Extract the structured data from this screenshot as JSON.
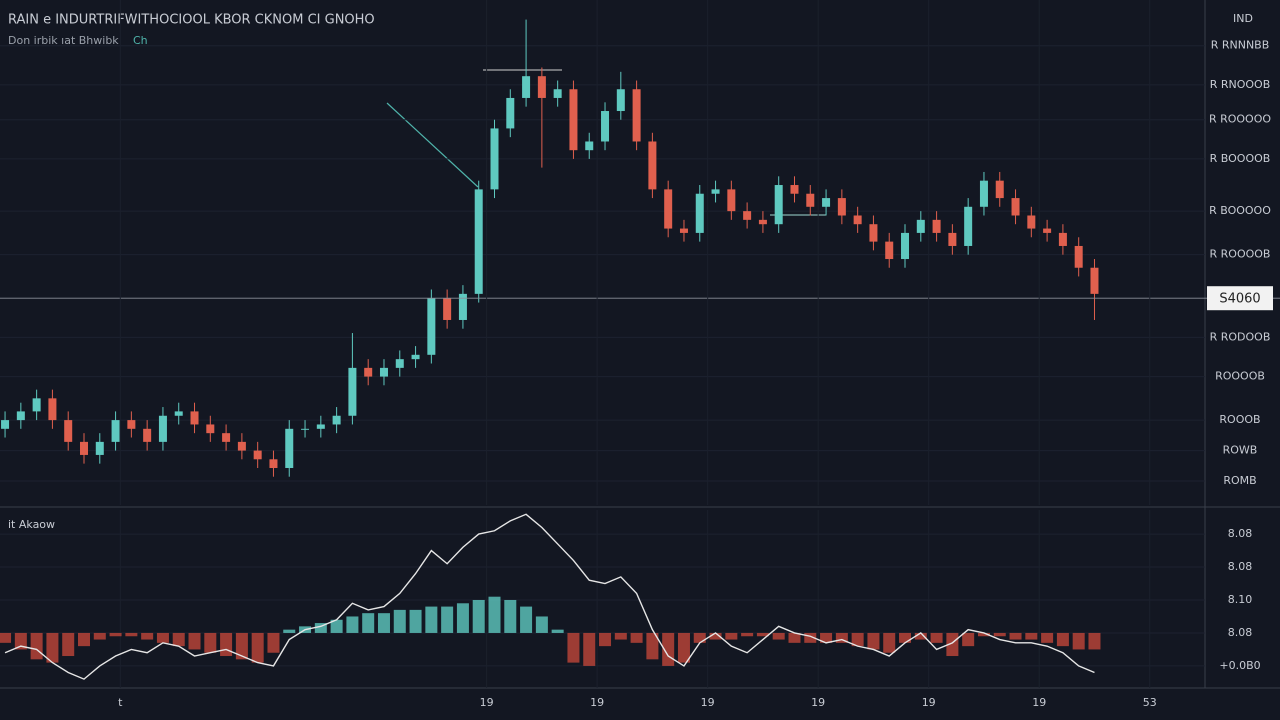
{
  "chart_data": [
    {
      "type": "candlestick",
      "title": "RAIN e INDURTRIFWITHOCIOOL KBOR CKNOM CI GNOHO",
      "subtitle": "Don irbik ıat Bhwibk",
      "subtitle_note": "Ch",
      "axis_label": "IND",
      "up_color": "#5fc9c0",
      "down_color": "#e0604e",
      "grid": true,
      "xlim": [
        -0.32,
        76
      ],
      "ylim": [
        0.45,
        12.05
      ],
      "yticks": [
        {
          "value": 11,
          "label": "R RNNNBB"
        },
        {
          "value": 10.1,
          "label": "R RNOOOB"
        },
        {
          "value": 9.3,
          "label": "R ROOOOO"
        },
        {
          "value": 8.4,
          "label": "R BOOOOB"
        },
        {
          "value": 7.2,
          "label": "R BOOOOO"
        },
        {
          "value": 6.2,
          "label": "R ROOOOB"
        },
        {
          "value": 4.3,
          "label": "R RODOOB"
        },
        {
          "value": 3.4,
          "label": "ROOOOB"
        },
        {
          "value": 2.4,
          "label": "ROOOB"
        },
        {
          "value": 1.7,
          "label": "ROWB"
        },
        {
          "value": 1,
          "label": "ROMB"
        }
      ],
      "price_line": {
        "value": 5.2,
        "label": "S4060"
      },
      "open": [
        2.2,
        2.4,
        2.6,
        2.9,
        2.4,
        1.9,
        1.6,
        1.9,
        2.4,
        2.2,
        1.9,
        2.5,
        2.6,
        2.3,
        2.1,
        1.9,
        1.7,
        1.5,
        1.3,
        2.2,
        2.2,
        2.3,
        2.5,
        3.6,
        3.4,
        3.6,
        3.8,
        3.9,
        5.2,
        4.7,
        5.3,
        7.7,
        9.1,
        9.8,
        10.3,
        9.8,
        10.0,
        8.6,
        8.8,
        9.5,
        10.0,
        8.8,
        7.7,
        6.8,
        6.7,
        7.6,
        7.7,
        7.2,
        7.0,
        6.9,
        7.8,
        7.6,
        7.3,
        7.5,
        7.1,
        6.9,
        6.5,
        6.1,
        6.7,
        7.0,
        6.7,
        6.4,
        7.3,
        7.9,
        7.5,
        7.1,
        6.8,
        6.7,
        6.4,
        5.9
      ],
      "high": [
        2.6,
        2.8,
        3.1,
        3.1,
        2.6,
        2.1,
        2.1,
        2.6,
        2.6,
        2.4,
        2.7,
        2.8,
        2.8,
        2.5,
        2.3,
        2.1,
        1.9,
        1.7,
        2.4,
        2.4,
        2.5,
        2.7,
        4.4,
        3.8,
        3.8,
        4.0,
        4.1,
        5.4,
        5.4,
        5.5,
        7.9,
        9.3,
        10.0,
        11.6,
        10.5,
        10.2,
        10.2,
        9.0,
        9.7,
        10.4,
        10.2,
        9.0,
        7.9,
        7.0,
        7.8,
        7.9,
        7.9,
        7.4,
        7.2,
        8.0,
        8.0,
        7.8,
        7.7,
        7.7,
        7.3,
        7.1,
        6.7,
        6.9,
        7.2,
        7.2,
        6.9,
        7.5,
        8.1,
        8.1,
        7.7,
        7.3,
        7.0,
        6.9,
        6.6,
        6.1
      ],
      "low": [
        2.0,
        2.2,
        2.4,
        2.2,
        1.7,
        1.4,
        1.4,
        1.7,
        2.0,
        1.7,
        1.7,
        2.3,
        2.1,
        1.9,
        1.7,
        1.5,
        1.3,
        1.1,
        1.1,
        2.0,
        2.0,
        2.1,
        2.3,
        3.2,
        3.2,
        3.4,
        3.6,
        3.7,
        4.5,
        4.5,
        5.1,
        7.5,
        8.9,
        9.6,
        8.2,
        9.6,
        8.4,
        8.4,
        8.6,
        9.3,
        8.6,
        7.5,
        6.6,
        6.5,
        6.5,
        7.4,
        7.0,
        6.8,
        6.7,
        6.7,
        7.4,
        7.1,
        7.1,
        6.9,
        6.7,
        6.3,
        5.9,
        5.9,
        6.5,
        6.5,
        6.2,
        6.2,
        7.1,
        7.3,
        6.9,
        6.6,
        6.5,
        6.2,
        5.7,
        4.7
      ],
      "close": [
        2.4,
        2.6,
        2.9,
        2.4,
        1.9,
        1.6,
        1.9,
        2.4,
        2.2,
        1.9,
        2.5,
        2.6,
        2.3,
        2.1,
        1.9,
        1.7,
        1.5,
        1.3,
        2.2,
        2.2,
        2.3,
        2.5,
        3.6,
        3.4,
        3.6,
        3.8,
        3.9,
        5.2,
        4.7,
        5.3,
        7.7,
        9.1,
        9.8,
        10.3,
        9.8,
        10.0,
        8.6,
        8.8,
        9.5,
        10.0,
        8.8,
        7.7,
        6.8,
        6.7,
        7.6,
        7.7,
        7.2,
        7.0,
        6.9,
        7.8,
        7.6,
        7.3,
        7.5,
        7.1,
        6.9,
        6.5,
        6.1,
        6.7,
        7.0,
        6.7,
        6.4,
        7.3,
        7.9,
        7.5,
        7.1,
        6.8,
        6.7,
        6.4,
        5.9,
        5.3
      ]
    },
    {
      "type": "bar",
      "title": "it Akaow",
      "up_color": "#5fc9c0",
      "down_color": "#c0463a",
      "grid": true,
      "xlim": [
        -0.32,
        76
      ],
      "ylim": [
        -1.67,
        3.73
      ],
      "yticks": [
        {
          "value": 3,
          "label": "8.08"
        },
        {
          "value": 2,
          "label": "8.08"
        },
        {
          "value": 1,
          "label": "8.10"
        },
        {
          "value": 0,
          "label": "8.08"
        },
        {
          "value": -1,
          "label": "+0.0B0"
        }
      ],
      "xticks": [
        {
          "value": 7.3,
          "label": "t"
        },
        {
          "value": 30.5,
          "label": "19"
        },
        {
          "value": 37.5,
          "label": "19"
        },
        {
          "value": 44.5,
          "label": "19"
        },
        {
          "value": 51.5,
          "label": "19"
        },
        {
          "value": 58.5,
          "label": "19"
        },
        {
          "value": 65.5,
          "label": "19"
        },
        {
          "value": 72.5,
          "label": "53"
        }
      ],
      "values": [
        -0.3,
        -0.5,
        -0.8,
        -0.9,
        -0.7,
        -0.4,
        -0.2,
        -0.1,
        -0.1,
        -0.2,
        -0.3,
        -0.4,
        -0.5,
        -0.6,
        -0.7,
        -0.8,
        -0.9,
        -0.6,
        0.1,
        0.2,
        0.3,
        0.4,
        0.5,
        0.6,
        0.6,
        0.7,
        0.7,
        0.8,
        0.8,
        0.9,
        1.0,
        1.1,
        1.0,
        0.8,
        0.5,
        0.1,
        -0.9,
        -1.0,
        -0.4,
        -0.2,
        -0.3,
        -0.8,
        -1.0,
        -0.9,
        -0.3,
        -0.2,
        -0.2,
        -0.1,
        -0.1,
        -0.2,
        -0.3,
        -0.3,
        -0.3,
        -0.3,
        -0.4,
        -0.5,
        -0.6,
        -0.3,
        -0.2,
        -0.3,
        -0.7,
        -0.4,
        -0.1,
        -0.1,
        -0.2,
        -0.2,
        -0.3,
        -0.4,
        -0.5,
        -0.5
      ],
      "series": [
        {
          "color": "#e6e6e6",
          "values": [
            -0.6,
            -0.4,
            -0.5,
            -0.9,
            -1.2,
            -1.4,
            -1.0,
            -0.7,
            -0.5,
            -0.6,
            -0.3,
            -0.4,
            -0.7,
            -0.6,
            -0.5,
            -0.7,
            -0.9,
            -1.0,
            -0.2,
            0.1,
            0.2,
            0.4,
            0.9,
            0.7,
            0.8,
            1.2,
            1.8,
            2.5,
            2.1,
            2.6,
            3.0,
            3.1,
            3.4,
            3.6,
            3.2,
            2.7,
            2.2,
            1.6,
            1.5,
            1.7,
            1.2,
            0.1,
            -0.7,
            -1.0,
            -0.3,
            0.0,
            -0.4,
            -0.6,
            -0.2,
            0.2,
            0.0,
            -0.1,
            -0.3,
            -0.2,
            -0.4,
            -0.5,
            -0.7,
            -0.3,
            0.0,
            -0.5,
            -0.3,
            0.1,
            0.0,
            -0.2,
            -0.3,
            -0.3,
            -0.4,
            -0.6,
            -1.0,
            -1.2
          ]
        }
      ]
    }
  ]
}
